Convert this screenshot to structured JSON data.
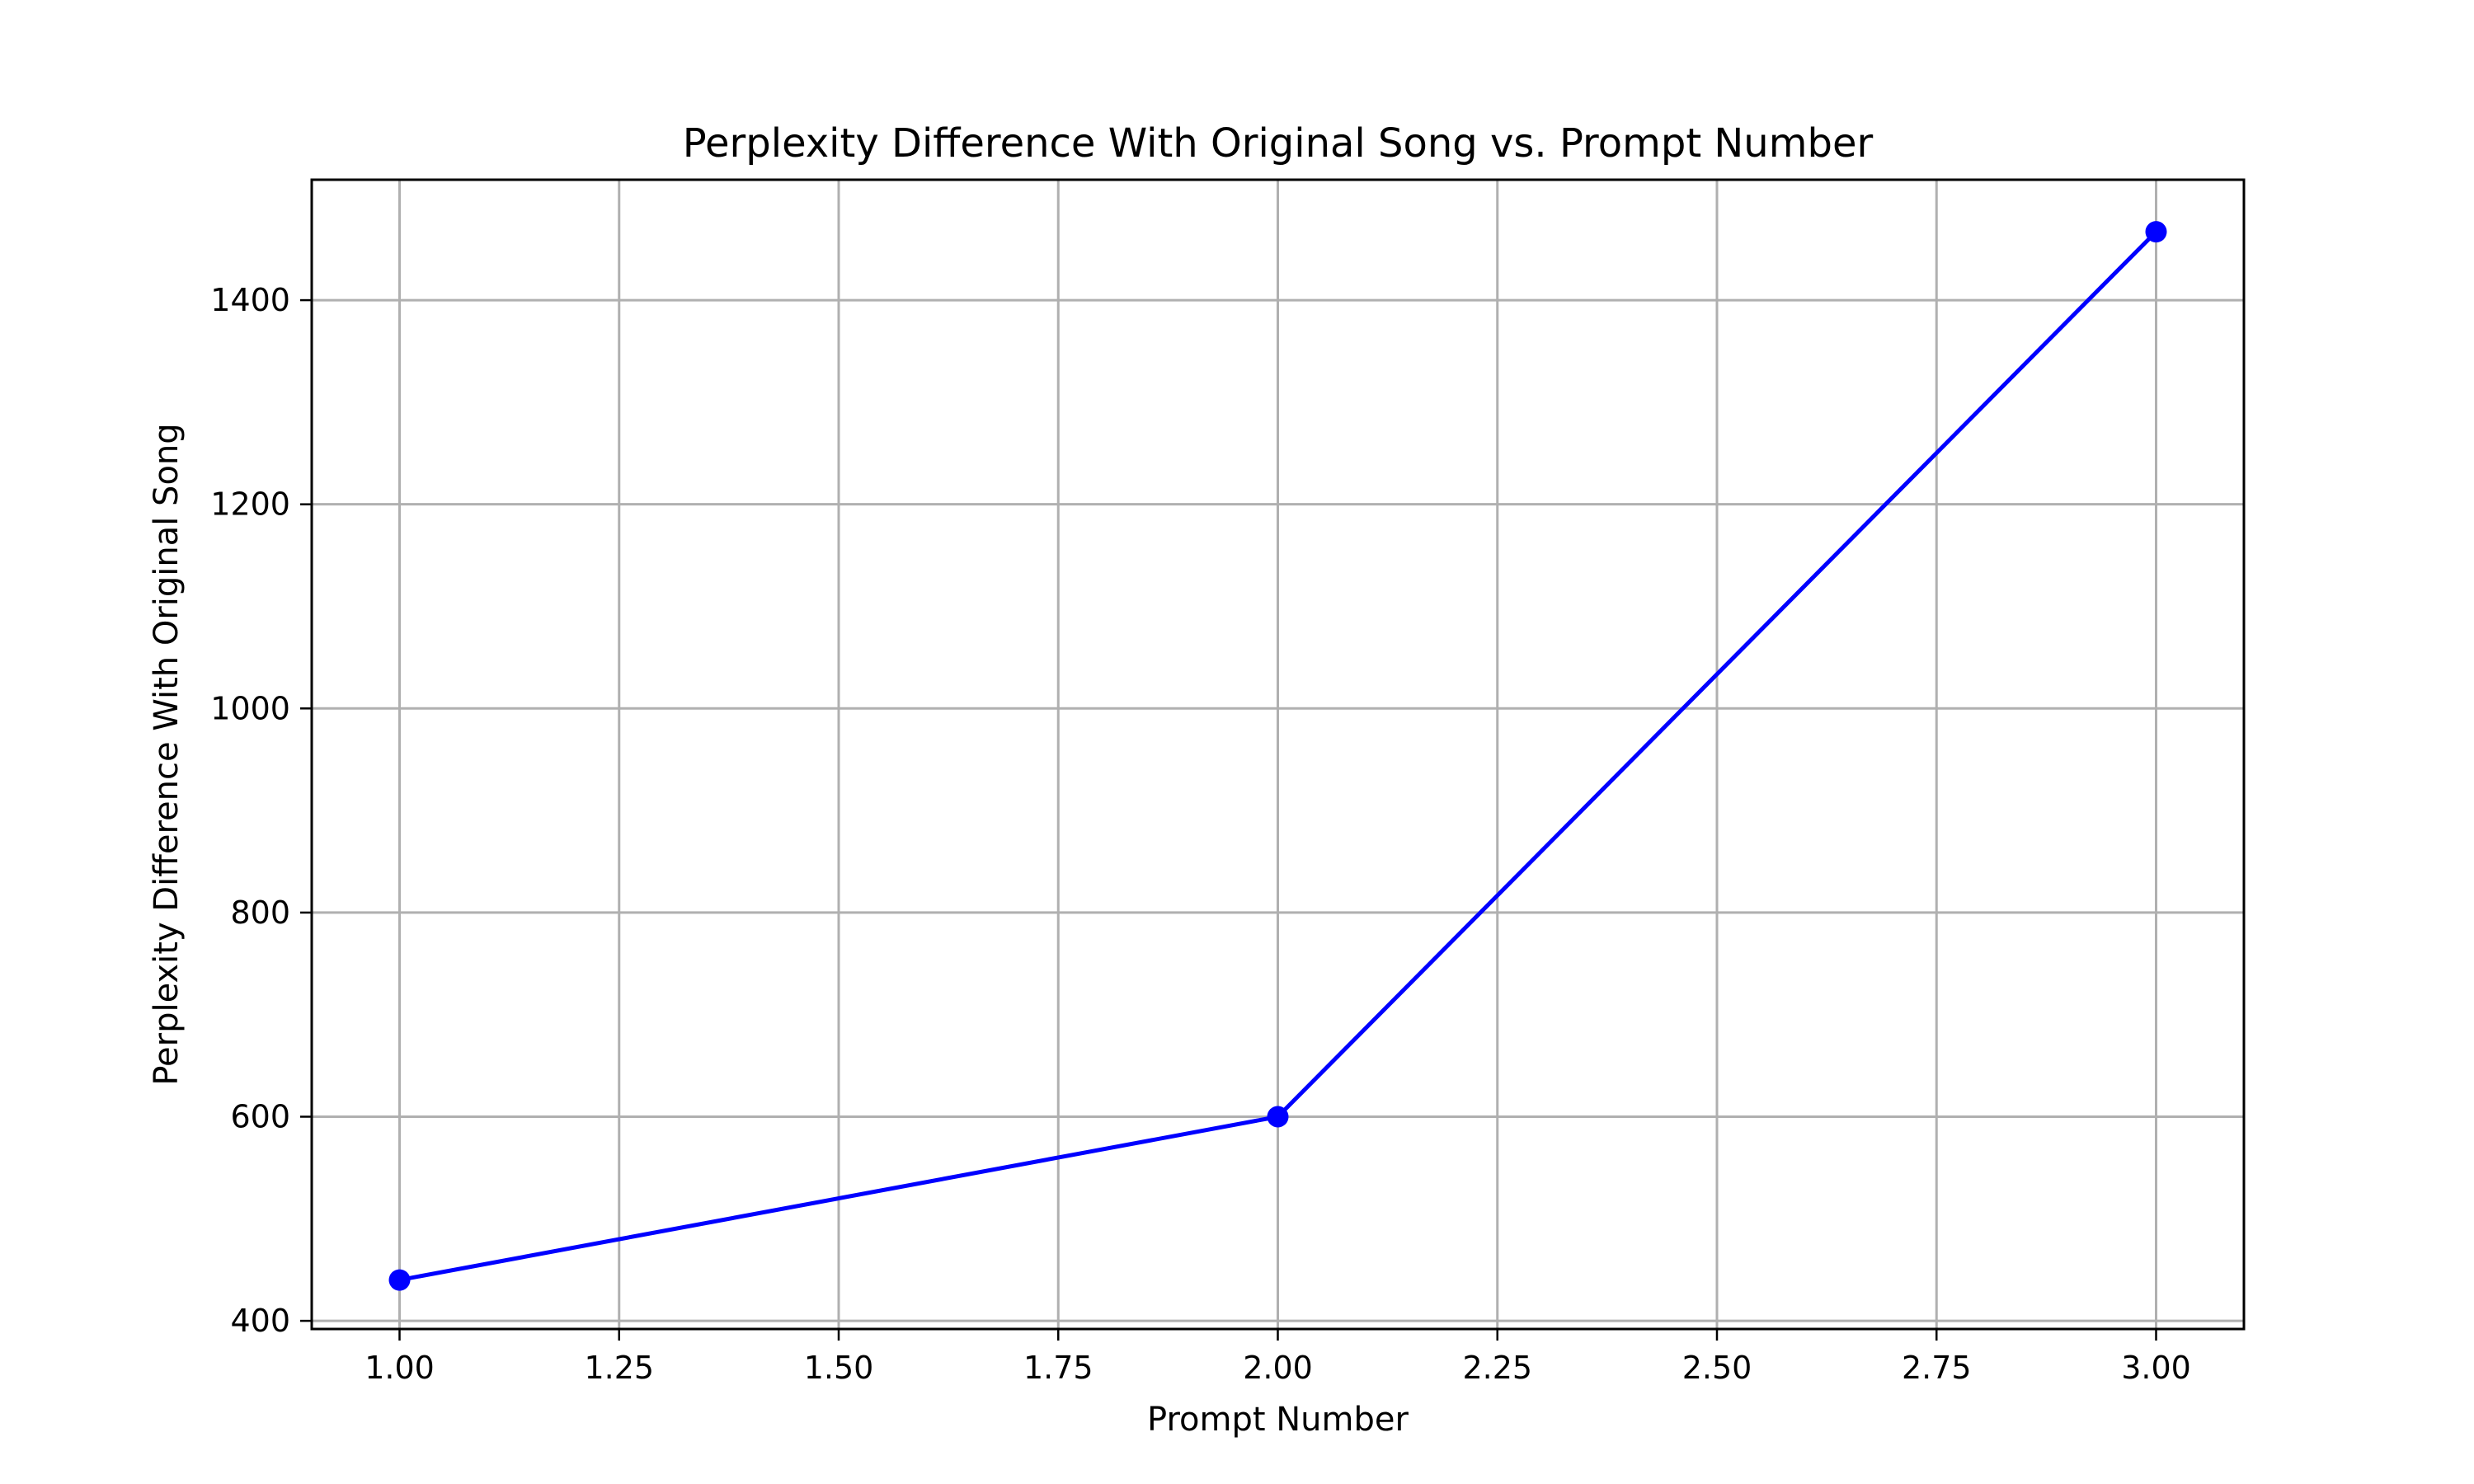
{
  "chart_data": {
    "type": "line",
    "title": "Perplexity Difference With Original Song vs. Prompt Number",
    "xlabel": "Prompt Number",
    "ylabel": "Perplexity Difference With Original Song",
    "xlim": [
      0.9,
      3.1
    ],
    "ylim": [
      392,
      1518
    ],
    "xticks": [
      1.0,
      1.25,
      1.5,
      1.75,
      2.0,
      2.25,
      2.5,
      2.75,
      3.0
    ],
    "xtick_labels": [
      "1.00",
      "1.25",
      "1.50",
      "1.75",
      "2.00",
      "2.25",
      "2.50",
      "2.75",
      "3.00"
    ],
    "yticks": [
      400,
      600,
      800,
      1000,
      1200,
      1400
    ],
    "ytick_labels": [
      "400",
      "600",
      "800",
      "1000",
      "1200",
      "1400"
    ],
    "grid": true,
    "series": [
      {
        "x": [
          1,
          2,
          3
        ],
        "values": [
          440,
          600,
          1467
        ],
        "color": "#0000ff",
        "marker": "circle"
      }
    ]
  }
}
